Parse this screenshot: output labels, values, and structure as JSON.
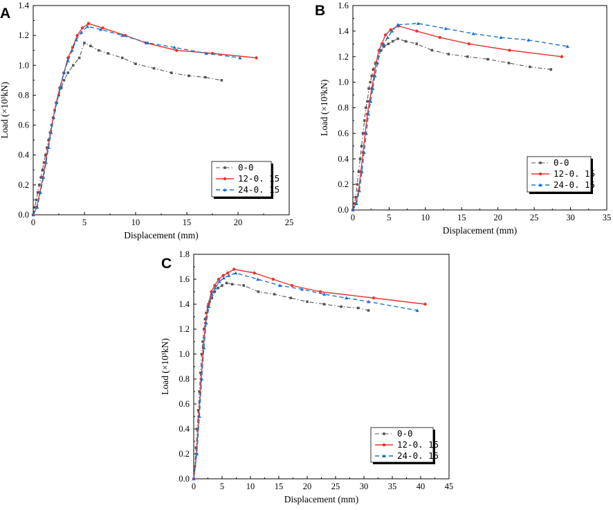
{
  "figure_letters": [
    "A",
    "B",
    "C"
  ],
  "series_colors": {
    "0-0": "#555555",
    "12-0. 15": "#e8332e",
    "24-0. 15": "#1a73c9"
  },
  "chart_data": [
    {
      "id": "A",
      "type": "line",
      "title": "",
      "xlabel": "Displacement (mm)",
      "ylabel": "Load (×10³kN)",
      "xlim": [
        0,
        25
      ],
      "ylim": [
        0,
        1.4
      ],
      "xticks": [
        "0",
        "5",
        "10",
        "15",
        "20",
        "25"
      ],
      "yticks": [
        "0.0",
        "0.2",
        "0.4",
        "0.6",
        "0.8",
        "1.0",
        "1.2",
        "1.4"
      ],
      "legend_position": "bottom-right",
      "series": [
        {
          "name": "0-0",
          "x": [
            0,
            0.15,
            0.3,
            0.45,
            0.6,
            0.75,
            0.9,
            1.05,
            1.2,
            1.35,
            1.5,
            1.65,
            1.8,
            1.95,
            2.1,
            2.3,
            2.5,
            2.75,
            3.0,
            3.4,
            3.9,
            4.5,
            5.0,
            5.6,
            6.4,
            7.3,
            8.7,
            10.0,
            11.8,
            13.5,
            15.2,
            16.8,
            18.4
          ],
          "y": [
            0.0,
            0.05,
            0.1,
            0.15,
            0.2,
            0.25,
            0.3,
            0.35,
            0.4,
            0.45,
            0.5,
            0.55,
            0.6,
            0.65,
            0.7,
            0.75,
            0.8,
            0.85,
            0.9,
            0.95,
            1.0,
            1.05,
            1.15,
            1.13,
            1.1,
            1.08,
            1.05,
            1.01,
            0.98,
            0.95,
            0.93,
            0.92,
            0.9
          ]
        },
        {
          "name": "12-0. 15",
          "x": [
            0,
            0.35,
            0.65,
            0.95,
            1.2,
            1.45,
            1.7,
            1.95,
            2.25,
            2.6,
            3.0,
            3.4,
            3.85,
            4.3,
            4.8,
            5.4,
            6.8,
            9.0,
            11.0,
            14.0,
            17.5,
            21.8
          ],
          "y": [
            0.0,
            0.05,
            0.15,
            0.25,
            0.35,
            0.45,
            0.55,
            0.65,
            0.75,
            0.85,
            0.95,
            1.05,
            1.12,
            1.2,
            1.25,
            1.28,
            1.25,
            1.2,
            1.15,
            1.1,
            1.08,
            1.05
          ]
        },
        {
          "name": "24-0. 15",
          "x": [
            0,
            0.4,
            0.7,
            1.0,
            1.25,
            1.5,
            1.75,
            2.0,
            2.3,
            2.65,
            3.0,
            3.4,
            3.8,
            4.2,
            4.7,
            5.3,
            6.6,
            8.7,
            11.2,
            13.8,
            16.9,
            20.2
          ],
          "y": [
            0.0,
            0.05,
            0.15,
            0.25,
            0.35,
            0.45,
            0.55,
            0.65,
            0.75,
            0.85,
            0.95,
            1.03,
            1.1,
            1.17,
            1.22,
            1.26,
            1.24,
            1.2,
            1.15,
            1.12,
            1.08,
            1.05
          ]
        }
      ]
    },
    {
      "id": "B",
      "type": "line",
      "title": "",
      "xlabel": "Displacement (mm)",
      "ylabel": "Load (×10³kN)",
      "xlim": [
        0,
        35
      ],
      "ylim": [
        0,
        1.6
      ],
      "xticks": [
        "0",
        "5",
        "10",
        "15",
        "20",
        "25",
        "30",
        "35"
      ],
      "yticks": [
        "0.0",
        "0.2",
        "0.4",
        "0.6",
        "0.8",
        "1.0",
        "1.2",
        "1.4",
        "1.6"
      ],
      "legend_position": "bottom-right",
      "series": [
        {
          "name": "0-0",
          "x": [
            0,
            0.2,
            0.4,
            0.6,
            0.8,
            1.0,
            1.2,
            1.4,
            1.6,
            1.8,
            2.0,
            2.2,
            2.4,
            2.6,
            2.8,
            3.1,
            3.5,
            3.9,
            4.3,
            4.9,
            5.5,
            6.2,
            7.3,
            8.8,
            10.9,
            13.2,
            15.8,
            18.6,
            21.5,
            24.4,
            27.3
          ],
          "y": [
            0.0,
            0.05,
            0.1,
            0.2,
            0.3,
            0.4,
            0.5,
            0.6,
            0.7,
            0.8,
            0.85,
            0.95,
            1.0,
            1.05,
            1.1,
            1.15,
            1.2,
            1.25,
            1.28,
            1.3,
            1.32,
            1.34,
            1.32,
            1.3,
            1.25,
            1.22,
            1.2,
            1.18,
            1.15,
            1.12,
            1.1
          ]
        },
        {
          "name": "12-0. 15",
          "x": [
            0,
            0.4,
            0.8,
            1.1,
            1.4,
            1.7,
            2.0,
            2.3,
            2.6,
            2.9,
            3.2,
            3.6,
            4.0,
            4.5,
            5.2,
            6.3,
            8.8,
            12.0,
            16.0,
            21.6,
            28.8
          ],
          "y": [
            0.0,
            0.05,
            0.15,
            0.3,
            0.45,
            0.6,
            0.75,
            0.85,
            0.95,
            1.05,
            1.15,
            1.25,
            1.3,
            1.37,
            1.41,
            1.44,
            1.4,
            1.35,
            1.3,
            1.25,
            1.2
          ]
        },
        {
          "name": "24-0. 15",
          "x": [
            0,
            0.5,
            0.9,
            1.25,
            1.55,
            1.85,
            2.15,
            2.45,
            2.75,
            3.05,
            3.4,
            3.8,
            4.25,
            4.8,
            5.4,
            6.2,
            9.0,
            12.8,
            16.6,
            20.4,
            24.2,
            29.6
          ],
          "y": [
            0.0,
            0.05,
            0.15,
            0.3,
            0.45,
            0.6,
            0.75,
            0.85,
            0.95,
            1.05,
            1.15,
            1.25,
            1.3,
            1.35,
            1.4,
            1.45,
            1.46,
            1.42,
            1.38,
            1.35,
            1.33,
            1.28
          ]
        }
      ]
    },
    {
      "id": "C",
      "type": "line",
      "title": "",
      "xlabel": "Displacement (mm)",
      "ylabel": "Load (×10³kN)",
      "xlim": [
        0,
        45
      ],
      "ylim": [
        0,
        1.8
      ],
      "xticks": [
        "0",
        "5",
        "10",
        "15",
        "20",
        "25",
        "30",
        "35",
        "40",
        "45"
      ],
      "yticks": [
        "0.0",
        "0.2",
        "0.4",
        "0.6",
        "0.8",
        "1.0",
        "1.2",
        "1.4",
        "1.6",
        "1.8"
      ],
      "legend_position": "bottom-right",
      "series": [
        {
          "name": "0-0",
          "x": [
            0,
            0.2,
            0.4,
            0.6,
            0.8,
            1.0,
            1.2,
            1.4,
            1.6,
            1.8,
            2.0,
            2.2,
            2.5,
            2.8,
            3.2,
            3.7,
            4.3,
            5.0,
            5.8,
            6.8,
            8.8,
            11.4,
            14.2,
            17.1,
            20.0,
            23.0,
            26.0,
            29.0,
            30.8
          ],
          "y": [
            0.0,
            0.1,
            0.25,
            0.4,
            0.55,
            0.7,
            0.85,
            1.0,
            1.1,
            1.2,
            1.28,
            1.33,
            1.38,
            1.42,
            1.45,
            1.5,
            1.53,
            1.55,
            1.57,
            1.56,
            1.55,
            1.5,
            1.48,
            1.45,
            1.42,
            1.4,
            1.38,
            1.37,
            1.35
          ]
        },
        {
          "name": "12-0. 15",
          "x": [
            0,
            0.5,
            0.9,
            1.3,
            1.7,
            2.1,
            2.6,
            3.1,
            3.7,
            4.4,
            5.2,
            6.0,
            7.1,
            10.7,
            14.0,
            17.3,
            22.3,
            31.7,
            40.8
          ],
          "y": [
            0.0,
            0.2,
            0.5,
            0.8,
            1.05,
            1.25,
            1.4,
            1.5,
            1.55,
            1.6,
            1.63,
            1.65,
            1.68,
            1.65,
            1.6,
            1.55,
            1.5,
            1.45,
            1.4
          ]
        },
        {
          "name": "24-0. 15",
          "x": [
            0,
            0.55,
            1.0,
            1.4,
            1.8,
            2.2,
            2.7,
            3.2,
            3.8,
            4.5,
            5.3,
            6.2,
            7.4,
            11.3,
            15.2,
            19.1,
            23.0,
            26.9,
            30.8,
            39.4
          ],
          "y": [
            0.0,
            0.2,
            0.5,
            0.8,
            1.05,
            1.25,
            1.38,
            1.48,
            1.53,
            1.58,
            1.61,
            1.63,
            1.65,
            1.6,
            1.55,
            1.52,
            1.48,
            1.45,
            1.42,
            1.35
          ]
        }
      ]
    }
  ]
}
